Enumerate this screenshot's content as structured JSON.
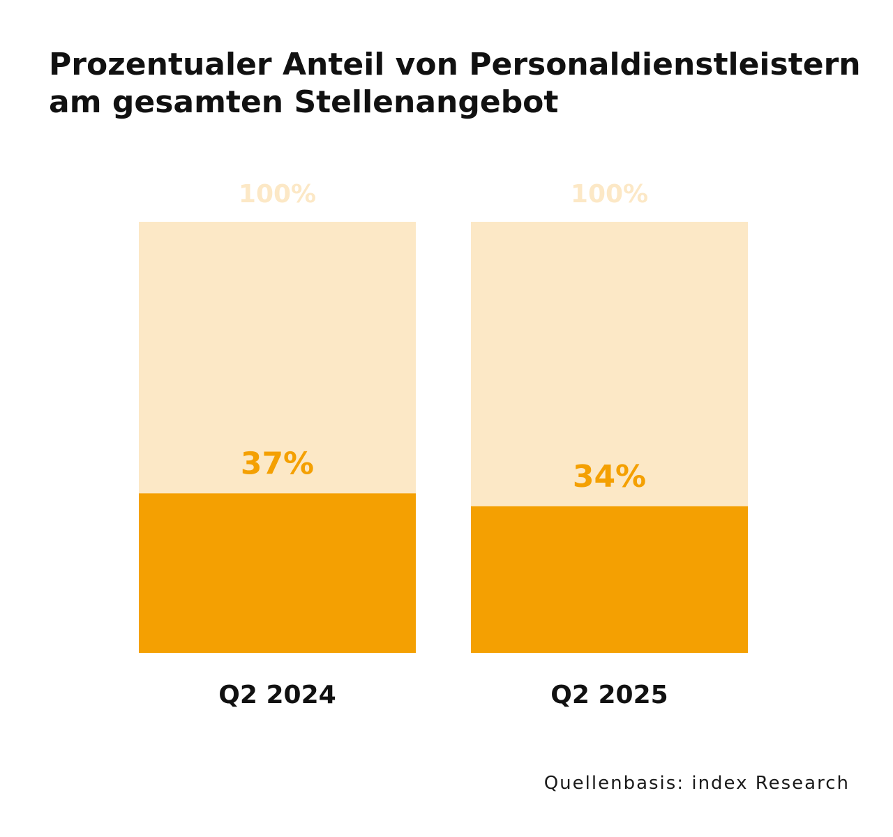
{
  "chart_data": {
    "type": "bar",
    "title": "Prozentualer Anteil von Personaldienstleistern am gesamten Stellenangebot",
    "categories": [
      "Q2 2024",
      "Q2 2025"
    ],
    "values": [
      37,
      34
    ],
    "value_labels": [
      "37%",
      "34%"
    ],
    "total": 100,
    "total_labels": [
      "100%",
      "100%"
    ],
    "ylim": [
      0,
      100
    ],
    "xlabel": "",
    "ylabel": "",
    "grid": false,
    "source": "Quellenbasis: index Research",
    "colors": {
      "value_bar": "#F4A002",
      "total_bar": "#FCE8C6",
      "value_label": "#F4A002",
      "total_label": "#FCE8C6",
      "category_label": "#111111",
      "title": "#111111"
    }
  }
}
